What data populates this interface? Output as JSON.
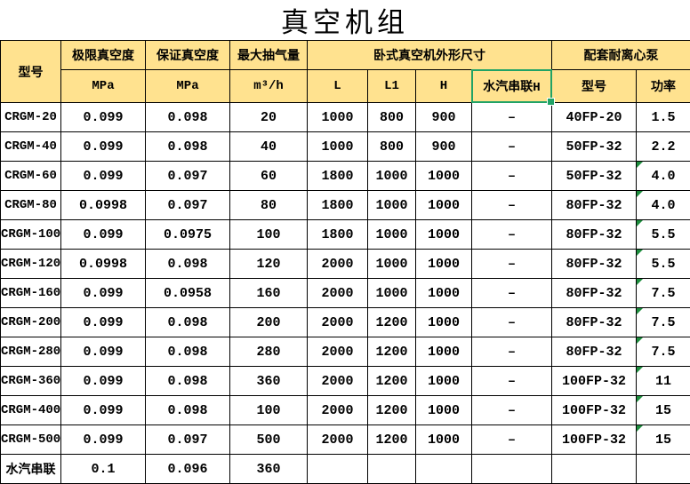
{
  "title": "真空机组",
  "colors": {
    "header_bg": "#FFE28F",
    "grid_border": "#000000",
    "selection_green": "#21A366",
    "error_triangle_green": "#1E8E3E"
  },
  "table": {
    "header": {
      "model": "型号",
      "ultimate_vacuum": "极限真空度",
      "guaranteed_vacuum": "保证真空度",
      "max_pumping": "最大抽气量",
      "dimensions_group": "卧式真空机外形尺寸",
      "pump_group": "配套耐离心泵",
      "mpa_ultimate": "MPa",
      "mpa_guaranteed": "MPa",
      "m3_per_h": "m³/h",
      "l": "L",
      "l1": "L1",
      "h": "H",
      "series_h": "水汽串联H",
      "pump_model": "型号",
      "pump_power": "功率"
    },
    "rows": [
      {
        "model": "CRGM-20",
        "ultimate": "0.099",
        "guaranteed": "0.098",
        "capacity": "20",
        "l": "1000",
        "l1": "800",
        "h": "900",
        "series_h": "–",
        "pump_model": "40FP-20",
        "power": "1.5",
        "error_flag": false
      },
      {
        "model": "CRGM-40",
        "ultimate": "0.099",
        "guaranteed": "0.098",
        "capacity": "40",
        "l": "1000",
        "l1": "800",
        "h": "900",
        "series_h": "–",
        "pump_model": "50FP-32",
        "power": "2.2",
        "error_flag": false
      },
      {
        "model": "CRGM-60",
        "ultimate": "0.099",
        "guaranteed": "0.097",
        "capacity": "60",
        "l": "1800",
        "l1": "1000",
        "h": "1000",
        "series_h": "–",
        "pump_model": "50FP-32",
        "power": "4.0",
        "error_flag": true
      },
      {
        "model": "CRGM-80",
        "ultimate": "0.0998",
        "guaranteed": "0.097",
        "capacity": "80",
        "l": "1800",
        "l1": "1000",
        "h": "1000",
        "series_h": "–",
        "pump_model": "80FP-32",
        "power": "4.0",
        "error_flag": true
      },
      {
        "model": "CRGM-100",
        "ultimate": "0.099",
        "guaranteed": "0.0975",
        "capacity": "100",
        "l": "1800",
        "l1": "1000",
        "h": "1000",
        "series_h": "–",
        "pump_model": "80FP-32",
        "power": "5.5",
        "error_flag": true
      },
      {
        "model": "CRGM-120",
        "ultimate": "0.0998",
        "guaranteed": "0.098",
        "capacity": "120",
        "l": "2000",
        "l1": "1000",
        "h": "1000",
        "series_h": "–",
        "pump_model": "80FP-32",
        "power": "5.5",
        "error_flag": true
      },
      {
        "model": "CRGM-160",
        "ultimate": "0.099",
        "guaranteed": "0.0958",
        "capacity": "160",
        "l": "2000",
        "l1": "1000",
        "h": "1000",
        "series_h": "–",
        "pump_model": "80FP-32",
        "power": "7.5",
        "error_flag": true
      },
      {
        "model": "CRGM-200",
        "ultimate": "0.099",
        "guaranteed": "0.098",
        "capacity": "200",
        "l": "2000",
        "l1": "1200",
        "h": "1000",
        "series_h": "–",
        "pump_model": "80FP-32",
        "power": "7.5",
        "error_flag": true
      },
      {
        "model": "CRGM-280",
        "ultimate": "0.099",
        "guaranteed": "0.098",
        "capacity": "280",
        "l": "2000",
        "l1": "1200",
        "h": "1000",
        "series_h": "–",
        "pump_model": "80FP-32",
        "power": "7.5",
        "error_flag": true
      },
      {
        "model": "CRGM-360",
        "ultimate": "0.099",
        "guaranteed": "0.098",
        "capacity": "360",
        "l": "2000",
        "l1": "1200",
        "h": "1000",
        "series_h": "–",
        "pump_model": "100FP-32",
        "power": "11",
        "error_flag": true
      },
      {
        "model": "CRGM-400",
        "ultimate": "0.099",
        "guaranteed": "0.098",
        "capacity": "100",
        "l": "2000",
        "l1": "1200",
        "h": "1000",
        "series_h": "–",
        "pump_model": "100FP-32",
        "power": "15",
        "error_flag": true
      },
      {
        "model": "CRGM-500",
        "ultimate": "0.099",
        "guaranteed": "0.097",
        "capacity": "500",
        "l": "2000",
        "l1": "1200",
        "h": "1000",
        "series_h": "–",
        "pump_model": "100FP-32",
        "power": "15",
        "error_flag": true
      },
      {
        "model": "水汽串联",
        "ultimate": "0.1",
        "guaranteed": "0.096",
        "capacity": "360",
        "l": "",
        "l1": "",
        "h": "",
        "series_h": "",
        "pump_model": "",
        "power": "",
        "error_flag": false
      }
    ]
  }
}
